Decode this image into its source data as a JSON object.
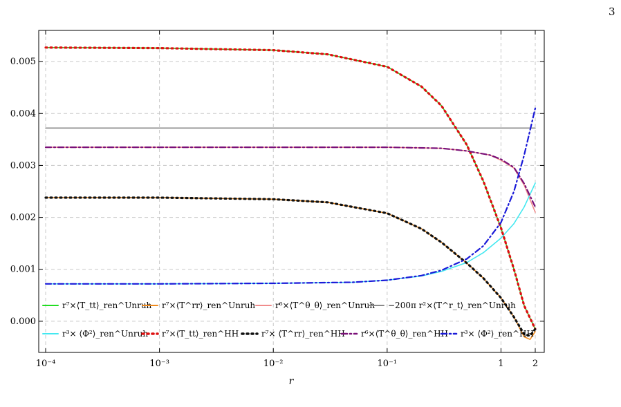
{
  "page": {
    "number": "3"
  },
  "chart_data": {
    "type": "line",
    "xscale": "log",
    "xlim": [
      0.0001,
      2
    ],
    "ylim": [
      -0.0006,
      0.0056
    ],
    "xlabel": "r",
    "ylabel": "",
    "grid": true,
    "legend_position": "bottom-inside",
    "xticks": [
      {
        "value": 0.0001,
        "label": "10⁻⁴"
      },
      {
        "value": 0.001,
        "label": "10⁻³"
      },
      {
        "value": 0.01,
        "label": "10⁻²"
      },
      {
        "value": 0.1,
        "label": "10⁻¹"
      },
      {
        "value": 1,
        "label": "1"
      },
      {
        "value": 2,
        "label": "2"
      }
    ],
    "yticks": [
      {
        "value": 0.0,
        "label": "0.000"
      },
      {
        "value": 0.001,
        "label": "0.001"
      },
      {
        "value": 0.002,
        "label": "0.002"
      },
      {
        "value": 0.003,
        "label": "0.003"
      },
      {
        "value": 0.004,
        "label": "0.004"
      },
      {
        "value": 0.005,
        "label": "0.005"
      }
    ],
    "series": [
      {
        "name": "r⁷×⟨T_tt⟩_ren^Unruh",
        "color": "#22dd22",
        "dash": "solid",
        "x": [
          0.0001,
          0.001,
          0.01,
          0.03,
          0.1,
          0.2,
          0.3,
          0.5,
          0.7,
          1,
          1.3,
          1.6,
          2
        ],
        "y": [
          0.00527,
          0.00526,
          0.00522,
          0.00514,
          0.0049,
          0.00452,
          0.00415,
          0.0034,
          0.0027,
          0.0018,
          0.001,
          0.0003,
          -0.00015
        ]
      },
      {
        "name": "r⁷×⟨T^rr⟩_ren^Unruh",
        "color": "#f08a1c",
        "dash": "solid",
        "x": [
          0.0001,
          0.001,
          0.01,
          0.03,
          0.1,
          0.2,
          0.3,
          0.5,
          0.7,
          1,
          1.3,
          1.6,
          1.8,
          2
        ],
        "y": [
          0.00238,
          0.00238,
          0.00235,
          0.00229,
          0.00208,
          0.00178,
          0.00152,
          0.00112,
          0.00083,
          0.00045,
          8e-05,
          -0.0003,
          -0.00035,
          -0.0002
        ]
      },
      {
        "name": "r⁶×⟨T^θ_θ⟩_ren^Unruh",
        "color": "#f08c8c",
        "dash": "solid",
        "x": [
          0.0001,
          0.01,
          0.1,
          0.3,
          0.5,
          0.8,
          1,
          1.3,
          1.6,
          2
        ],
        "y": [
          0.00335,
          0.00335,
          0.00335,
          0.00333,
          0.00328,
          0.0032,
          0.0031,
          0.00295,
          0.00262,
          0.0021
        ]
      },
      {
        "name": "−200π r²×⟨T^r_t⟩_ren^Unruh",
        "color": "#8a8a8a",
        "dash": "solid",
        "x": [
          0.0001,
          2
        ],
        "y": [
          0.00372,
          0.00372
        ]
      },
      {
        "name": "r³× ⟨Φ²⟩_ren^Unruh",
        "color": "#44e8f0",
        "dash": "solid",
        "x": [
          0.0001,
          0.001,
          0.01,
          0.05,
          0.1,
          0.2,
          0.3,
          0.5,
          0.7,
          1,
          1.3,
          1.6,
          2
        ],
        "y": [
          0.00072,
          0.00072,
          0.00073,
          0.00075,
          0.00079,
          0.00087,
          0.00096,
          0.00113,
          0.00132,
          0.0016,
          0.00188,
          0.0022,
          0.00266
        ]
      },
      {
        "name": "r⁷×⟨T_tt⟩_ren^HH",
        "color": "#dd1111",
        "dash": "dot",
        "x": [
          0.0001,
          0.001,
          0.01,
          0.03,
          0.1,
          0.2,
          0.3,
          0.5,
          0.7,
          1,
          1.3,
          1.6,
          2
        ],
        "y": [
          0.00527,
          0.00526,
          0.00522,
          0.00514,
          0.0049,
          0.00452,
          0.00415,
          0.0034,
          0.0027,
          0.0018,
          0.001,
          0.0003,
          -0.00015
        ]
      },
      {
        "name": "r⁷× ⟨T^rr⟩_ren^HH",
        "color": "#111111",
        "dash": "dot",
        "x": [
          0.0001,
          0.001,
          0.01,
          0.03,
          0.1,
          0.2,
          0.3,
          0.5,
          0.7,
          1,
          1.3,
          1.6,
          1.8,
          2
        ],
        "y": [
          0.00238,
          0.00238,
          0.00235,
          0.00229,
          0.00208,
          0.00178,
          0.00152,
          0.00112,
          0.00083,
          0.00045,
          8e-05,
          -0.00025,
          -0.00028,
          -0.00015
        ]
      },
      {
        "name": "r⁶×⟨T^θ_θ⟩_ren^HH",
        "color": "#7a1078",
        "dash": "dashdot",
        "x": [
          0.0001,
          0.01,
          0.1,
          0.3,
          0.5,
          0.8,
          1,
          1.3,
          1.6,
          2
        ],
        "y": [
          0.00335,
          0.00335,
          0.00335,
          0.00333,
          0.00328,
          0.0032,
          0.00312,
          0.00296,
          0.00265,
          0.0022
        ]
      },
      {
        "name": "r³× ⟨Φ²⟩_ren^HH",
        "color": "#1a1ad8",
        "dash": "dashdot",
        "x": [
          0.0001,
          0.001,
          0.01,
          0.05,
          0.1,
          0.2,
          0.3,
          0.5,
          0.7,
          1,
          1.3,
          1.6,
          2
        ],
        "y": [
          0.00072,
          0.00072,
          0.00073,
          0.00075,
          0.00079,
          0.00088,
          0.00098,
          0.0012,
          0.00145,
          0.0019,
          0.0025,
          0.0032,
          0.0041
        ]
      }
    ]
  }
}
